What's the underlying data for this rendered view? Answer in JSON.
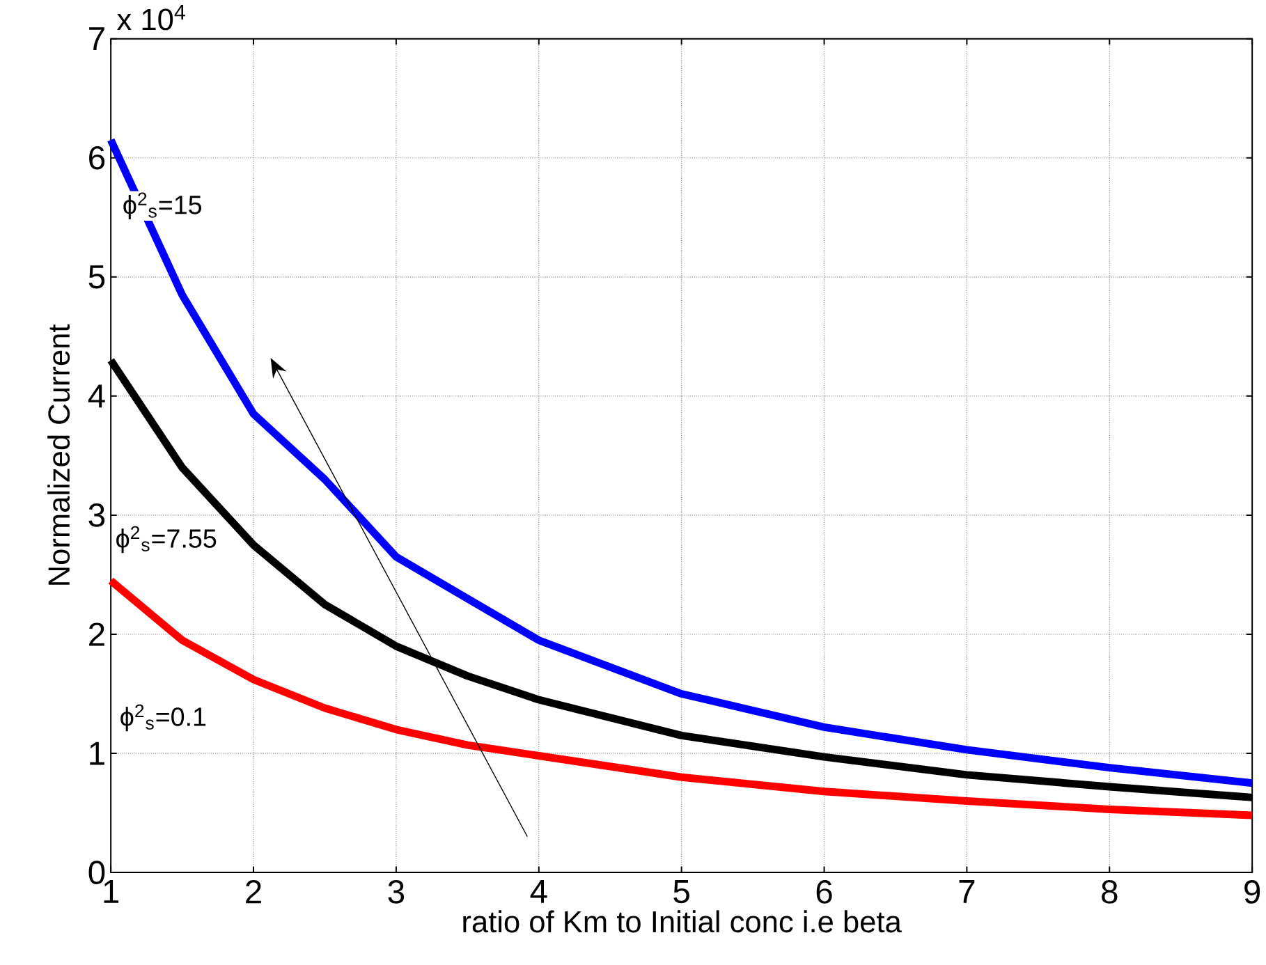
{
  "chart_data": {
    "type": "line",
    "xlabel": "ratio of Km to Initial conc i.e beta",
    "ylabel": "Normalized Current",
    "annotations": [
      "x 10$^{4}$"
    ],
    "x": [
      1,
      1.5,
      2,
      2.5,
      3,
      3.5,
      4,
      5,
      6,
      7,
      8,
      9
    ],
    "series": [
      {
        "name": "ϕ$^{2}$$_{s}$=15",
        "color": "#0000ff",
        "values": [
          6.15,
          4.85,
          3.85,
          3.3,
          2.65,
          2.3,
          1.95,
          1.5,
          1.22,
          1.03,
          0.88,
          0.75
        ]
      },
      {
        "name": "ϕ$^{2}$$_{s}$=7.55",
        "color": "#000000",
        "values": [
          4.3,
          3.4,
          2.75,
          2.25,
          1.9,
          1.65,
          1.45,
          1.15,
          0.97,
          0.82,
          0.72,
          0.63
        ]
      },
      {
        "name": "ϕ$^{2}$$_{s}$=0.1",
        "color": "#ff0000",
        "values": [
          2.45,
          1.95,
          1.62,
          1.38,
          1.2,
          1.07,
          0.98,
          0.8,
          0.68,
          0.6,
          0.53,
          0.48
        ]
      }
    ],
    "xlim": [
      1,
      9
    ],
    "ylim": [
      0,
      7
    ],
    "xticks": [
      1,
      2,
      3,
      4,
      5,
      6,
      7,
      8,
      9
    ],
    "yticks": [
      0,
      1,
      2,
      3,
      4,
      5,
      6,
      7
    ],
    "grid": true,
    "legend": false,
    "marker": "none",
    "line_style": "solid"
  }
}
